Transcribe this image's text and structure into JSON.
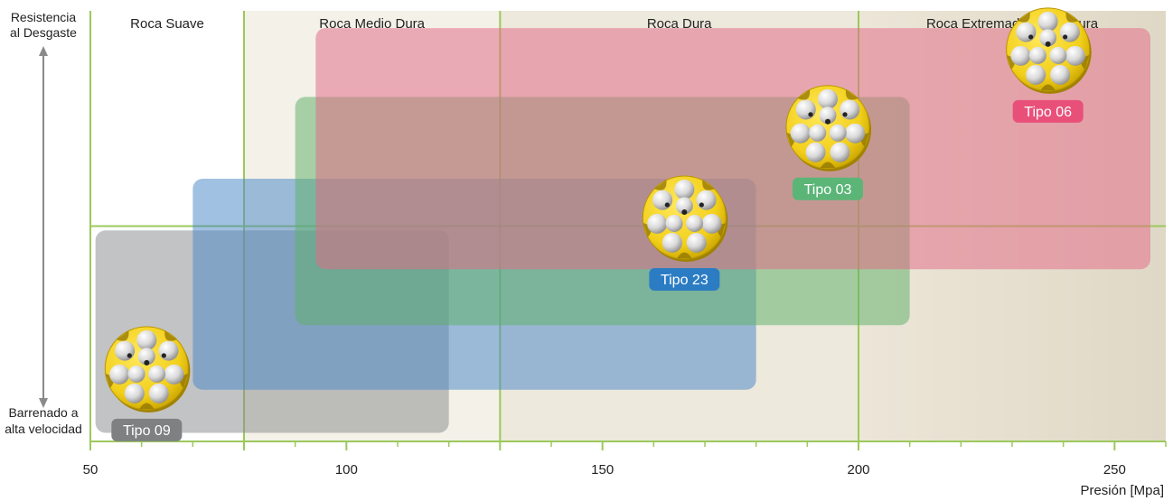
{
  "chart_data": {
    "type": "range-chart",
    "title": "",
    "xlabel": "Presión [Mpa]",
    "ylabel_top": "Resistencia al Desgaste",
    "ylabel_bottom": "Barrenado a alta velocidad",
    "xlim": [
      50,
      260
    ],
    "ylim": [
      0,
      100
    ],
    "x_ticks": [
      50,
      100,
      150,
      200,
      250
    ],
    "minor_tick_step": 10,
    "grid": true,
    "zones": [
      {
        "label": "Roca Suave",
        "x": [
          50,
          80
        ],
        "color": "#ffffff"
      },
      {
        "label": "Roca Medio Dura",
        "x": [
          80,
          130
        ],
        "color": "#f3f1e8"
      },
      {
        "label": "Roca Dura",
        "x": [
          130,
          200
        ],
        "color": "#ede9dc"
      },
      {
        "label": "Roca Extremadamente Dura",
        "x": [
          200,
          260
        ],
        "color": "#e6dfcf"
      }
    ],
    "ranges": [
      {
        "name": "Tipo 09",
        "x": [
          51,
          120
        ],
        "y": [
          2,
          49
        ],
        "color": "#8a8c8e",
        "icon_x": 61,
        "icon_y": 17,
        "badge_color": "#7f8082"
      },
      {
        "name": "Tipo 23",
        "x": [
          70,
          180
        ],
        "y": [
          12,
          61
        ],
        "color": "#4a89c8",
        "icon_x": 166,
        "icon_y": 52,
        "badge_color": "#2b7cc3"
      },
      {
        "name": "Tipo 03",
        "x": [
          90,
          210
        ],
        "y": [
          27,
          80
        ],
        "color": "#5fb06a",
        "icon_x": 194,
        "icon_y": 73,
        "badge_color": "#5bb577"
      },
      {
        "name": "Tipo 06",
        "x": [
          94,
          260
        ],
        "y": [
          40,
          96
        ],
        "color": "#e36a86",
        "icon_x": 237,
        "icon_y": 91,
        "badge_color": "#e8507a"
      }
    ]
  }
}
